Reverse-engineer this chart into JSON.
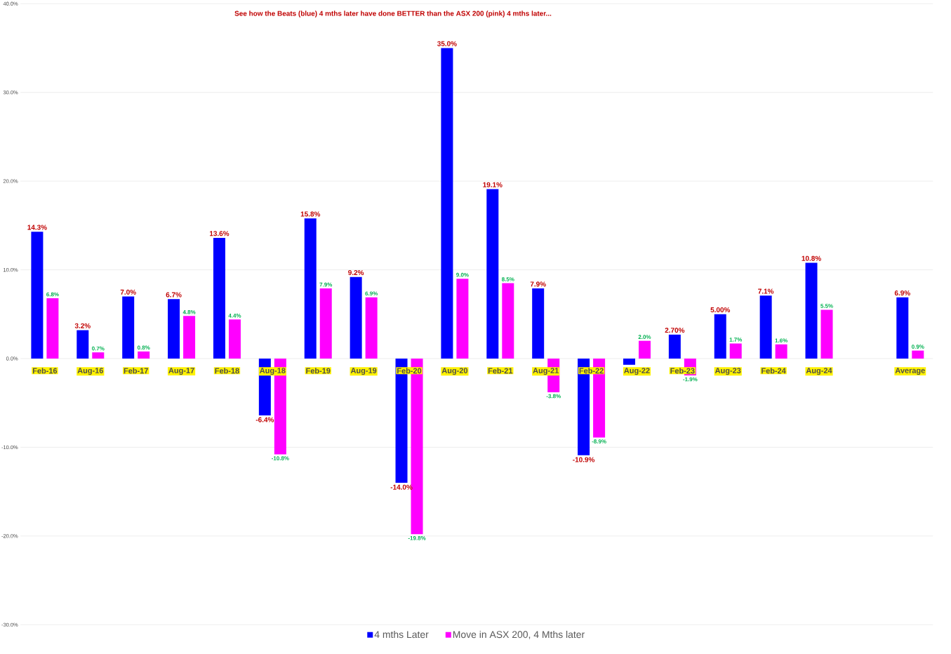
{
  "chart_data": {
    "type": "bar",
    "title": "See how the Beats (blue) 4 mths later have done BETTER than the ASX 200  (pink) 4 mths later...",
    "categories": [
      "Feb-16",
      "Aug-16",
      "Feb-17",
      "Aug-17",
      "Feb-18",
      "Aug-18",
      "Feb-19",
      "Aug-19",
      "Feb-20",
      "Aug-20",
      "Feb-21",
      "Aug-21",
      "Feb-22",
      "Aug-22",
      "Feb-23",
      "Aug-23",
      "Feb-24",
      "Aug-24",
      null,
      "Average"
    ],
    "series": [
      {
        "name": "4 mths Later",
        "color": "#0000ff",
        "values": [
          14.3,
          3.2,
          7.0,
          6.7,
          13.6,
          -6.4,
          15.8,
          9.2,
          -14.0,
          35.0,
          19.1,
          7.9,
          -10.9,
          -0.7,
          2.7,
          5.0,
          7.1,
          10.8,
          null,
          6.9
        ],
        "value_labels": [
          "14.3%",
          "3.2%",
          "7.0%",
          "6.7%",
          "13.6%",
          "-6.4%",
          "15.8%",
          "9.2%",
          "-14.0%",
          "35.0%",
          "19.1%",
          "7.9%",
          "-10.9%",
          null,
          "2.70%",
          "5.00%",
          "7.1%",
          "10.8%",
          null,
          "6.9%"
        ]
      },
      {
        "name": "Move in ASX 200,  4 Mths later",
        "color": "#ff00ff",
        "values": [
          6.8,
          0.7,
          0.8,
          4.8,
          4.4,
          -10.8,
          7.9,
          6.9,
          -19.8,
          9.0,
          8.5,
          -3.8,
          -8.9,
          2.0,
          -1.9,
          1.7,
          1.6,
          5.5,
          null,
          0.9
        ],
        "value_labels": [
          "6.8%",
          "0.7%",
          "0.8%",
          "4.8%",
          "4.4%",
          "-10.8%",
          "7.9%",
          "6.9%",
          "-19.8%",
          "9.0%",
          "8.5%",
          "-3.8%",
          "-8.9%",
          "2.0%",
          "-1.9%",
          "1.7%",
          "1.6%",
          "5.5%",
          null,
          "0.9%"
        ]
      }
    ],
    "ylim": [
      -30,
      40
    ],
    "yticks": [
      {
        "value": -30,
        "label": "-30.0%"
      },
      {
        "value": -20,
        "label": "-20.0%"
      },
      {
        "value": -10,
        "label": "-10.0%"
      },
      {
        "value": 0,
        "label": "0.0%"
      },
      {
        "value": 10,
        "label": "10.0%"
      },
      {
        "value": 20,
        "label": "20.0%"
      },
      {
        "value": 30,
        "label": "30.0%"
      },
      {
        "value": 40,
        "label": "40.0%"
      }
    ],
    "grid": "y",
    "legend": "bottom"
  }
}
